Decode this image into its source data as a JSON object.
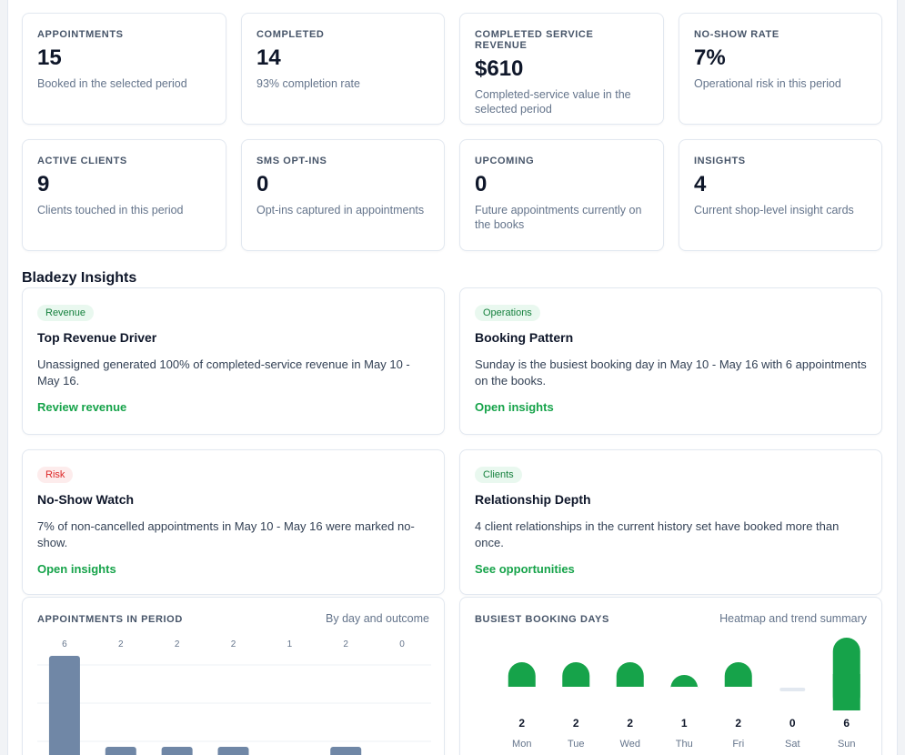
{
  "stats": [
    {
      "label": "APPOINTMENTS",
      "value": "15",
      "sub": "Booked in the selected period"
    },
    {
      "label": "COMPLETED",
      "value": "14",
      "sub": "93% completion rate"
    },
    {
      "label": "COMPLETED SERVICE REVENUE",
      "value": "$610",
      "sub": "Completed-service value in the selected period"
    },
    {
      "label": "NO-SHOW RATE",
      "value": "7%",
      "sub": "Operational risk in this period"
    },
    {
      "label": "ACTIVE CLIENTS",
      "value": "9",
      "sub": "Clients touched in this period"
    },
    {
      "label": "SMS OPT-INS",
      "value": "0",
      "sub": "Opt-ins captured in appointments"
    },
    {
      "label": "UPCOMING",
      "value": "0",
      "sub": "Future appointments currently on the books"
    },
    {
      "label": "INSIGHTS",
      "value": "4",
      "sub": "Current shop-level insight cards"
    }
  ],
  "insights_title": "Bladezy Insights",
  "insights": [
    {
      "tag": "Revenue",
      "title": "Top Revenue Driver",
      "body": "Unassigned generated 100% of completed-service revenue in May 10 - May 16.",
      "link": "Review revenue"
    },
    {
      "tag": "Operations",
      "title": "Booking Pattern",
      "body": "Sunday is the busiest booking day in May 10 - May 16 with 6 appointments on the books.",
      "link": "Open insights"
    },
    {
      "tag": "Risk",
      "title": "No-Show Watch",
      "body": "7% of non-cancelled appointments in May 10 - May 16 were marked no-show.",
      "link": "Open insights"
    },
    {
      "tag": "Clients",
      "title": "Relationship Depth",
      "body": "4 client relationships in the current history set have booked more than once.",
      "link": "See opportunities"
    }
  ],
  "colors": {
    "accent": "#16a34a",
    "bar": "#7087a6",
    "risk": "#dc2626"
  },
  "appointments_chart": {
    "label": "APPOINTMENTS IN PERIOD",
    "note": "By day and outcome"
  },
  "busiest_chart": {
    "label": "BUSIEST BOOKING DAYS",
    "note": "Heatmap and trend summary"
  },
  "chart_data": [
    {
      "type": "bar",
      "title": "APPOINTMENTS IN PERIOD",
      "values": [
        6,
        2,
        2,
        2,
        1,
        2,
        0
      ],
      "grid": true
    },
    {
      "type": "bar",
      "title": "BUSIEST BOOKING DAYS",
      "categories": [
        "Mon",
        "Tue",
        "Wed",
        "Thu",
        "Fri",
        "Sat",
        "Sun"
      ],
      "values": [
        2,
        2,
        2,
        1,
        2,
        0,
        6
      ]
    }
  ]
}
